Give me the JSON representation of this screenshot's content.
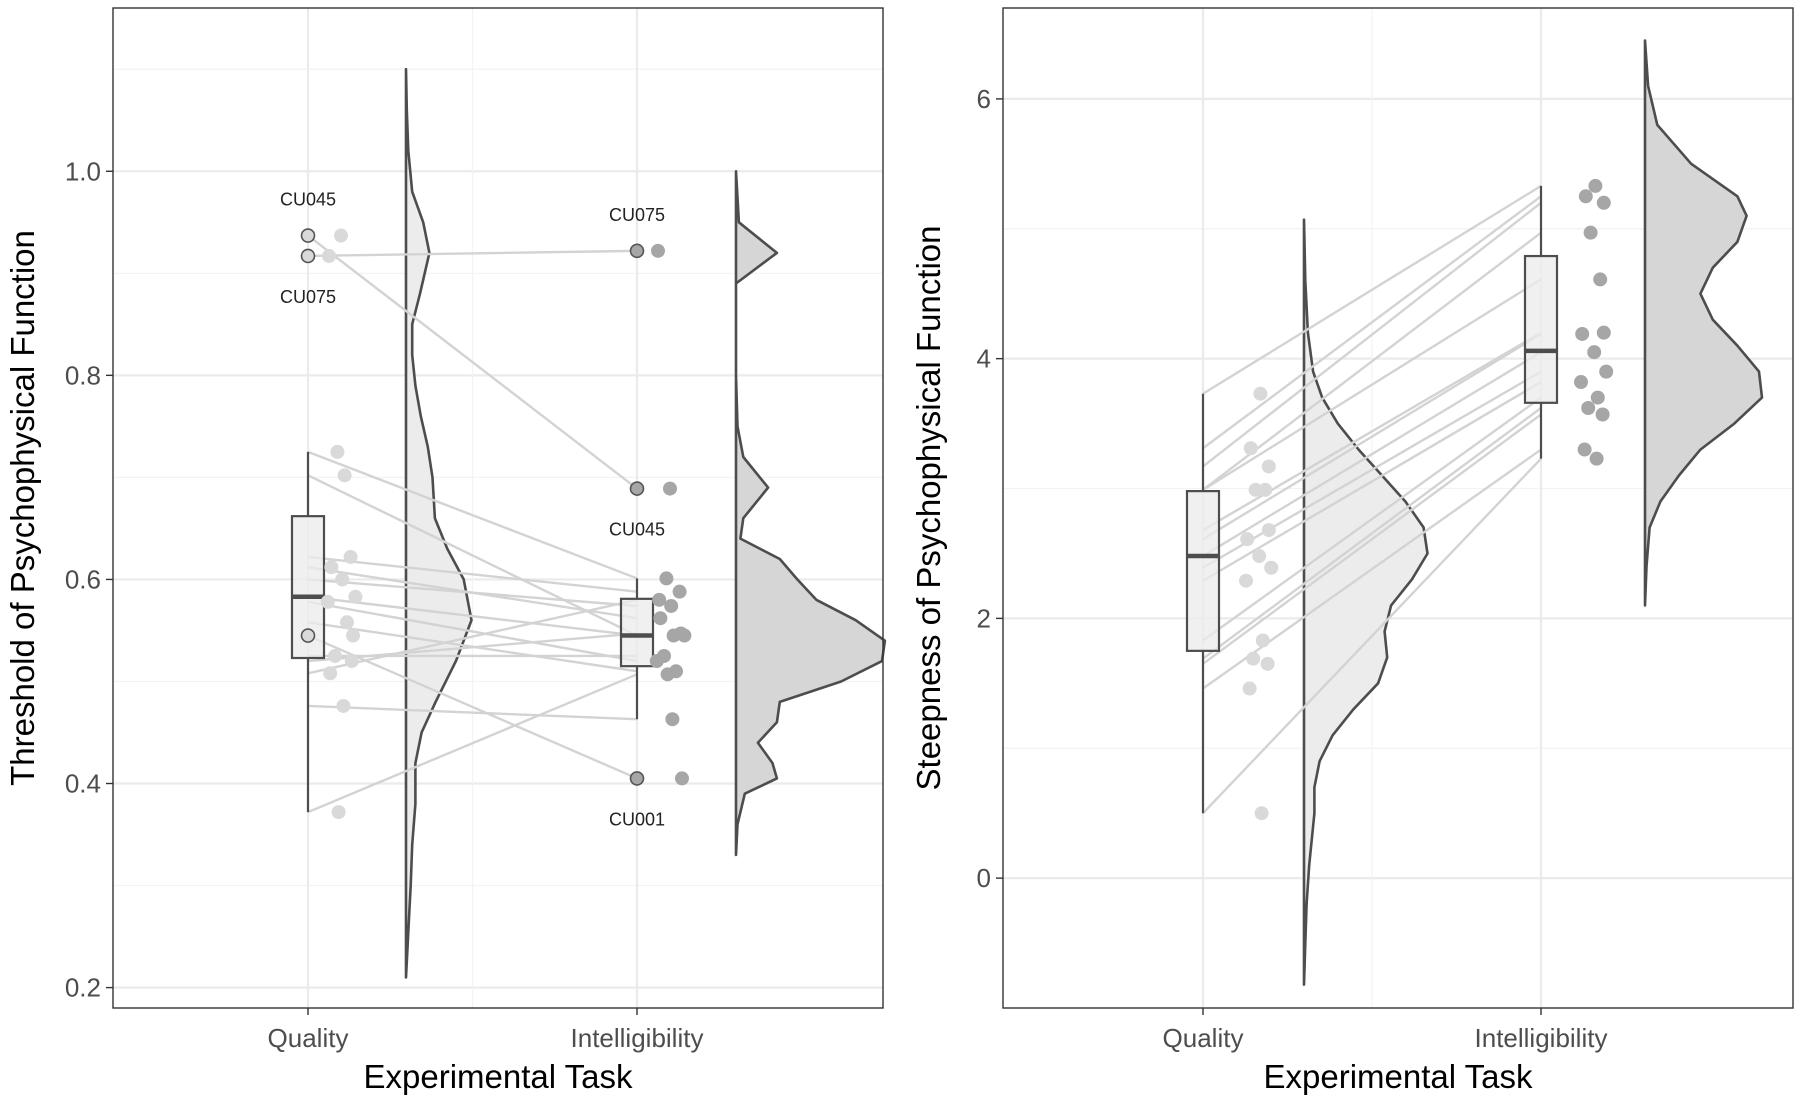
{
  "chart_data": [
    {
      "type": "raincloud",
      "xlabel": "Experimental Task",
      "ylabel": "Threshold of Psychophysical Function",
      "ylim": [
        0.18,
        1.16
      ],
      "yticks": [
        0.2,
        0.4,
        0.6,
        0.8,
        1.0
      ],
      "ytick_labels": [
        "0.2",
        "0.4",
        "0.6",
        "0.8",
        "1.0"
      ],
      "categories": [
        "Quality",
        "Intelligibility"
      ],
      "grid": true,
      "colors": {
        "quality": "#d9d9d9",
        "intelligibility": "#a6a6a6",
        "lines": "#d3d3d3",
        "outline": "#4d4d4d",
        "density_quality": "#ececec",
        "density_intelligibility": "#d6d6d6"
      },
      "boxes": [
        {
          "category": "Quality",
          "min": 0.372,
          "q1": 0.523,
          "median": 0.583,
          "q3": 0.662,
          "max": 0.725
        },
        {
          "category": "Intelligibility",
          "min": 0.463,
          "q1": 0.515,
          "median": 0.545,
          "q3": 0.581,
          "max": 0.601
        }
      ],
      "paired": [
        {
          "id": "CU045",
          "quality": 0.937,
          "intelligibility": 0.689
        },
        {
          "id": "CU075",
          "quality": 0.917,
          "intelligibility": 0.922
        },
        {
          "id": "CU001",
          "quality": 0.545,
          "intelligibility": 0.405
        },
        {
          "quality": 0.725,
          "intelligibility": 0.601
        },
        {
          "quality": 0.702,
          "intelligibility": 0.545
        },
        {
          "quality": 0.622,
          "intelligibility": 0.588
        },
        {
          "quality": 0.612,
          "intelligibility": 0.562
        },
        {
          "quality": 0.6,
          "intelligibility": 0.574
        },
        {
          "quality": 0.583,
          "intelligibility": 0.545
        },
        {
          "quality": 0.578,
          "intelligibility": 0.52
        },
        {
          "quality": 0.558,
          "intelligibility": 0.51
        },
        {
          "quality": 0.525,
          "intelligibility": 0.525
        },
        {
          "quality": 0.52,
          "intelligibility": 0.547
        },
        {
          "quality": 0.508,
          "intelligibility": 0.58
        },
        {
          "quality": 0.476,
          "intelligibility": 0.463
        },
        {
          "quality": 0.372,
          "intelligibility": 0.507
        }
      ],
      "labels": [
        {
          "text": "CU045",
          "category": "Quality",
          "y": 0.937,
          "position": "above"
        },
        {
          "text": "CU075",
          "category": "Quality",
          "y": 0.917,
          "position": "below"
        },
        {
          "text": "CU075",
          "category": "Intelligibility",
          "y": 0.922,
          "position": "above"
        },
        {
          "text": "CU045",
          "category": "Intelligibility",
          "y": 0.689,
          "position": "below"
        },
        {
          "text": "CU001",
          "category": "Intelligibility",
          "y": 0.405,
          "position": "below"
        }
      ],
      "density": {
        "quality": [
          [
            0.21,
            0
          ],
          [
            0.27,
            0.04
          ],
          [
            0.3,
            0.06
          ],
          [
            0.34,
            0.08
          ],
          [
            0.38,
            0.12
          ],
          [
            0.42,
            0.12
          ],
          [
            0.45,
            0.2
          ],
          [
            0.48,
            0.38
          ],
          [
            0.52,
            0.64
          ],
          [
            0.56,
            0.84
          ],
          [
            0.6,
            0.74
          ],
          [
            0.63,
            0.53
          ],
          [
            0.66,
            0.37
          ],
          [
            0.7,
            0.34
          ],
          [
            0.73,
            0.28
          ],
          [
            0.76,
            0.19
          ],
          [
            0.79,
            0.12
          ],
          [
            0.82,
            0.08
          ],
          [
            0.85,
            0.08
          ],
          [
            0.88,
            0.18
          ],
          [
            0.92,
            0.3
          ],
          [
            0.95,
            0.22
          ],
          [
            0.98,
            0.08
          ],
          [
            1.02,
            0.03
          ],
          [
            1.06,
            0.01
          ],
          [
            1.1,
            0
          ]
        ],
        "intelligibility": [
          [
            0.33,
            0
          ],
          [
            0.36,
            0.01
          ],
          [
            0.39,
            0.06
          ],
          [
            0.405,
            0.28
          ],
          [
            0.42,
            0.25
          ],
          [
            0.44,
            0.15
          ],
          [
            0.46,
            0.28
          ],
          [
            0.48,
            0.3
          ],
          [
            0.5,
            0.72
          ],
          [
            0.52,
            1.0
          ],
          [
            0.54,
            1.02
          ],
          [
            0.56,
            0.82
          ],
          [
            0.58,
            0.55
          ],
          [
            0.6,
            0.42
          ],
          [
            0.62,
            0.3
          ],
          [
            0.64,
            0.03
          ],
          [
            0.66,
            0.05
          ],
          [
            0.69,
            0.22
          ],
          [
            0.72,
            0.05
          ],
          [
            0.75,
            0.01
          ],
          [
            0.8,
            0.0
          ],
          [
            0.85,
            0.0
          ],
          [
            0.89,
            0.0
          ],
          [
            0.92,
            0.28
          ],
          [
            0.95,
            0.02
          ],
          [
            1.0,
            0
          ]
        ]
      }
    },
    {
      "type": "raincloud",
      "xlabel": "Experimental Task",
      "ylabel": "Steepness of Psychophysical Function",
      "ylim": [
        -1.0,
        6.7
      ],
      "yticks": [
        0,
        2,
        4,
        6
      ],
      "ytick_labels": [
        "0",
        "2",
        "4",
        "6"
      ],
      "categories": [
        "Quality",
        "Intelligibility"
      ],
      "grid": true,
      "colors": {
        "quality": "#d9d9d9",
        "intelligibility": "#a6a6a6",
        "lines": "#d3d3d3",
        "outline": "#4d4d4d",
        "density_quality": "#ececec",
        "density_intelligibility": "#d6d6d6"
      },
      "boxes": [
        {
          "category": "Quality",
          "min": 0.5,
          "q1": 1.75,
          "median": 2.48,
          "q3": 2.98,
          "max": 3.73
        },
        {
          "category": "Intelligibility",
          "min": 3.23,
          "q1": 3.66,
          "median": 4.06,
          "q3": 4.79,
          "max": 5.33
        }
      ],
      "paired": [
        {
          "quality": 3.73,
          "intelligibility": 5.33
        },
        {
          "quality": 3.31,
          "intelligibility": 5.25
        },
        {
          "quality": 3.17,
          "intelligibility": 5.2
        },
        {
          "quality": 2.99,
          "intelligibility": 4.97
        },
        {
          "quality": 2.99,
          "intelligibility": 4.61
        },
        {
          "quality": 2.68,
          "intelligibility": 4.2
        },
        {
          "quality": 2.61,
          "intelligibility": 4.19
        },
        {
          "quality": 2.48,
          "intelligibility": 4.05
        },
        {
          "quality": 2.39,
          "intelligibility": 3.9
        },
        {
          "quality": 2.29,
          "intelligibility": 3.82
        },
        {
          "quality": 1.83,
          "intelligibility": 3.7
        },
        {
          "quality": 1.69,
          "intelligibility": 3.62
        },
        {
          "quality": 1.65,
          "intelligibility": 3.57
        },
        {
          "quality": 1.46,
          "intelligibility": 3.3
        },
        {
          "quality": 0.5,
          "intelligibility": 3.23
        }
      ],
      "labels": [],
      "density": {
        "quality": [
          [
            -0.82,
            0
          ],
          [
            -0.5,
            0.01
          ],
          [
            -0.2,
            0.02
          ],
          [
            0.1,
            0.04
          ],
          [
            0.3,
            0.06
          ],
          [
            0.5,
            0.08
          ],
          [
            0.7,
            0.08
          ],
          [
            0.9,
            0.12
          ],
          [
            1.1,
            0.22
          ],
          [
            1.3,
            0.38
          ],
          [
            1.5,
            0.57
          ],
          [
            1.7,
            0.64
          ],
          [
            1.9,
            0.62
          ],
          [
            2.1,
            0.67
          ],
          [
            2.3,
            0.83
          ],
          [
            2.5,
            0.95
          ],
          [
            2.7,
            0.92
          ],
          [
            2.9,
            0.78
          ],
          [
            3.1,
            0.6
          ],
          [
            3.3,
            0.42
          ],
          [
            3.5,
            0.26
          ],
          [
            3.7,
            0.14
          ],
          [
            3.9,
            0.07
          ],
          [
            4.2,
            0.03
          ],
          [
            4.6,
            0.01
          ],
          [
            5.07,
            0
          ]
        ],
        "intelligibility": [
          [
            2.1,
            0
          ],
          [
            2.4,
            0.01
          ],
          [
            2.7,
            0.03
          ],
          [
            2.9,
            0.1
          ],
          [
            3.1,
            0.22
          ],
          [
            3.3,
            0.36
          ],
          [
            3.5,
            0.58
          ],
          [
            3.7,
            0.76
          ],
          [
            3.9,
            0.74
          ],
          [
            4.1,
            0.6
          ],
          [
            4.3,
            0.44
          ],
          [
            4.5,
            0.36
          ],
          [
            4.7,
            0.44
          ],
          [
            4.9,
            0.6
          ],
          [
            5.1,
            0.66
          ],
          [
            5.25,
            0.6
          ],
          [
            5.5,
            0.3
          ],
          [
            5.8,
            0.08
          ],
          [
            6.1,
            0.02
          ],
          [
            6.45,
            0
          ]
        ]
      }
    }
  ]
}
